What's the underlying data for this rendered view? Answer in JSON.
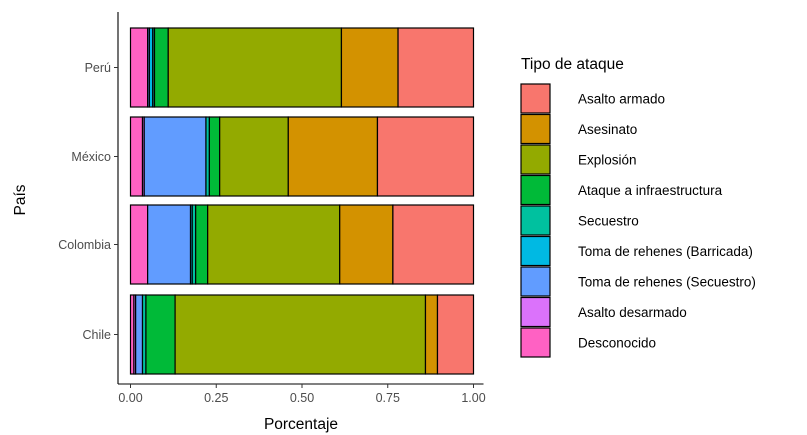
{
  "chart_data": {
    "type": "bar",
    "orientation": "horizontal",
    "stacked": true,
    "xlabel": "Porcentaje",
    "ylabel": "País",
    "xlim": [
      0,
      1
    ],
    "xticks": [
      "0.00",
      "0.25",
      "0.50",
      "0.75",
      "1.00"
    ],
    "categories": [
      "Perú",
      "México",
      "Colombia",
      "Chile"
    ],
    "legend": {
      "title": "Tipo de ataque",
      "position": "right"
    },
    "grid": false,
    "series": [
      {
        "name": "Desconocido",
        "color": "#FF61C3",
        "values": [
          0.05,
          0.035,
          0.05,
          0.01
        ]
      },
      {
        "name": "Asalto desarmado",
        "color": "#DB72FB",
        "values": [
          0.0,
          0.005,
          0.0,
          0.005
        ]
      },
      {
        "name": "Toma de rehenes (Secuestro)",
        "color": "#619CFF",
        "values": [
          0.005,
          0.18,
          0.125,
          0.02
        ]
      },
      {
        "name": "Toma de rehenes (Barricada)",
        "color": "#00B9E3",
        "values": [
          0.01,
          0.0,
          0.005,
          0.0
        ]
      },
      {
        "name": "Secuestro",
        "color": "#00C19F",
        "values": [
          0.005,
          0.01,
          0.01,
          0.01
        ]
      },
      {
        "name": "Ataque a infraestructura",
        "color": "#00BA38",
        "values": [
          0.04,
          0.03,
          0.035,
          0.085
        ]
      },
      {
        "name": "Explosión",
        "color": "#93AA00",
        "values": [
          0.505,
          0.2,
          0.385,
          0.73
        ]
      },
      {
        "name": "Asesinato",
        "color": "#D39200",
        "values": [
          0.165,
          0.26,
          0.155,
          0.035
        ]
      },
      {
        "name": "Asalto armado",
        "color": "#F8766D",
        "values": [
          0.22,
          0.28,
          0.235,
          0.105
        ]
      }
    ]
  }
}
